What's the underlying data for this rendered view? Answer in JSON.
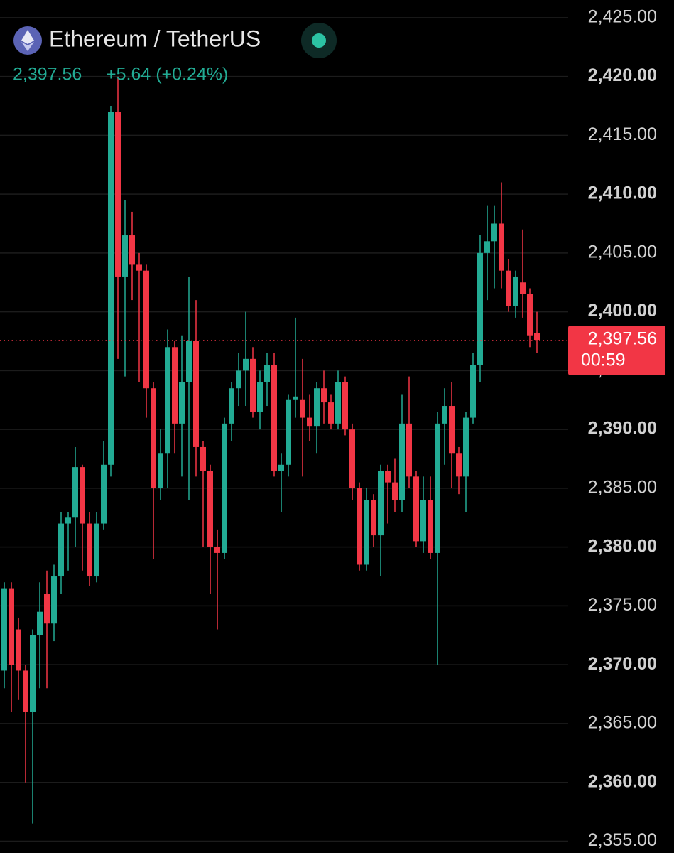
{
  "chart_data": {
    "type": "candlestick",
    "title": "Ethereum / TetherUS",
    "price": "2,397.56",
    "change": "+5.64 (+0.24%)",
    "last_price": {
      "value": 2397.56,
      "label": "2,397.56"
    },
    "countdown": "00:59",
    "up_color": "#22ab94",
    "down_color": "#f23645",
    "grid": true,
    "ylim": [
      2354,
      2426.5
    ],
    "yticks": [
      {
        "value": 2355,
        "label": "2,355.00"
      },
      {
        "value": 2360,
        "label": "2,360.00"
      },
      {
        "value": 2365,
        "label": "2,365.00"
      },
      {
        "value": 2370,
        "label": "2,370.00"
      },
      {
        "value": 2375,
        "label": "2,375.00"
      },
      {
        "value": 2380,
        "label": "2,380.00"
      },
      {
        "value": 2385,
        "label": "2,385.00"
      },
      {
        "value": 2390,
        "label": "2,390.00"
      },
      {
        "value": 2395,
        "label": "2,395.00"
      },
      {
        "value": 2400,
        "label": "2,400.00"
      },
      {
        "value": 2405,
        "label": "2,405.00"
      },
      {
        "value": 2410,
        "label": "2,410.00"
      },
      {
        "value": 2415,
        "label": "2,415.00"
      },
      {
        "value": 2420,
        "label": "2,420.00"
      },
      {
        "value": 2425,
        "label": "2,425.00"
      }
    ],
    "open": [
      2369.5,
      2376.5,
      2373,
      2369.5,
      2366,
      2372.5,
      2376,
      2373.5,
      2377.5,
      2382,
      2382.5,
      2386.8,
      2382,
      2377.5,
      2382,
      2387,
      2417,
      2403,
      2406.5,
      2404,
      2403.5,
      2393.5,
      2385,
      2388,
      2397,
      2390.5,
      2394,
      2397.5,
      2388.5,
      2386.5,
      2380,
      2379.5,
      2390.5,
      2393.5,
      2395,
      2396,
      2391.5,
      2394,
      2395.5,
      2386.5,
      2387,
      2392.5,
      2392.5,
      2391,
      2390.3,
      2393.5,
      2392.3,
      2390.5,
      2394,
      2390,
      2385,
      2378.5,
      2384,
      2381,
      2386.5,
      2385.5,
      2384,
      2390.5,
      2386,
      2380.5,
      2384,
      2379.5,
      2390.5,
      2392,
      2388,
      2386,
      2391,
      2395.5,
      2405,
      2406,
      2407.5,
      2403.5,
      2400.5,
      2402.5,
      2401.5,
      2398.2
    ],
    "high": [
      2377,
      2377,
      2374,
      2370,
      2373,
      2377,
      2378,
      2378.5,
      2383,
      2383,
      2388.5,
      2387,
      2383,
      2383,
      2389,
      2417.5,
      2420,
      2409.5,
      2408.5,
      2405,
      2404,
      2394,
      2390,
      2398.5,
      2397.5,
      2398,
      2403,
      2401,
      2389,
      2387,
      2381.5,
      2391,
      2394,
      2396.5,
      2400,
      2397,
      2395,
      2396.5,
      2396.5,
      2388,
      2393,
      2399.5,
      2396,
      2393,
      2394,
      2395,
      2393,
      2395,
      2394.5,
      2390.5,
      2385.5,
      2385,
      2384.5,
      2387,
      2387,
      2387.5,
      2393,
      2394.5,
      2386.5,
      2386,
      2386,
      2391.5,
      2393.5,
      2394,
      2388.5,
      2391.5,
      2396.5,
      2406.5,
      2409,
      2409,
      2411,
      2404.5,
      2403.5,
      2407,
      2402,
      2400
    ],
    "low": [
      2368,
      2366,
      2367,
      2360,
      2356.5,
      2368,
      2368,
      2372,
      2376,
      2378,
      2380,
      2378,
      2376.7,
      2377,
      2381.5,
      2386,
      2396,
      2394.5,
      2401,
      2394,
      2391,
      2379,
      2384,
      2385,
      2388,
      2386,
      2384,
      2386,
      2380,
      2376,
      2373,
      2379,
      2389,
      2392,
      2392,
      2391,
      2390,
      2392,
      2386,
      2383,
      2386,
      2391,
      2386,
      2389,
      2388,
      2390.5,
      2390,
      2390,
      2389.5,
      2384,
      2378,
      2378,
      2380,
      2377.5,
      2382,
      2383,
      2383,
      2385,
      2380,
      2379.5,
      2379,
      2370,
      2387,
      2385,
      2384.5,
      2383,
      2390.5,
      2394,
      2401,
      2402,
      2402,
      2400,
      2399.5,
      2399.5,
      2397,
      2396.5
    ],
    "close": [
      2376.5,
      2370,
      2369.5,
      2366,
      2372.5,
      2374.5,
      2373.5,
      2377.5,
      2382,
      2382.5,
      2386.8,
      2382,
      2377.5,
      2382,
      2387,
      2417,
      2403,
      2406.5,
      2404,
      2403.5,
      2393.5,
      2385,
      2388,
      2397,
      2390.5,
      2394,
      2397.5,
      2388.5,
      2386.5,
      2380,
      2379.5,
      2390.5,
      2393.5,
      2395,
      2396,
      2391.5,
      2394,
      2395.5,
      2386.5,
      2387,
      2392.5,
      2392.8,
      2391,
      2390.3,
      2393.5,
      2392.3,
      2390.5,
      2394,
      2390,
      2385,
      2378.5,
      2384,
      2381,
      2386.5,
      2385.5,
      2384,
      2390.5,
      2386,
      2380.5,
      2384,
      2379.5,
      2390.5,
      2392,
      2388,
      2386,
      2391,
      2395.5,
      2405,
      2406,
      2407.5,
      2403.5,
      2400.5,
      2403,
      2401.5,
      2398,
      2397.56
    ]
  }
}
